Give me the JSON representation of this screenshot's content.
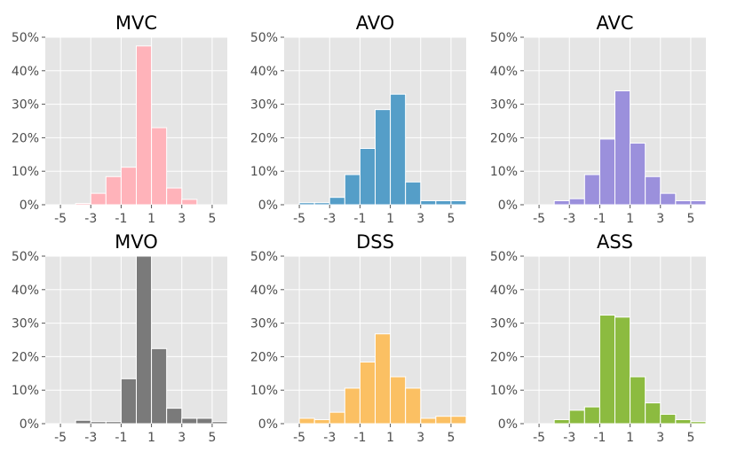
{
  "chart_data": [
    {
      "type": "bar",
      "title": "MVC",
      "color": "#ffb3ba",
      "ylim": [
        0,
        50
      ],
      "yticks": [
        "0%",
        "10%",
        "20%",
        "30%",
        "40%",
        "50%"
      ],
      "xticks": [
        "-5",
        "-3",
        "-1",
        "1",
        "3",
        "5"
      ],
      "bin_starts": [
        -5,
        -4,
        -3,
        -2,
        -1,
        0,
        1,
        2,
        3,
        4,
        5
      ],
      "values": [
        0.0,
        0.4,
        3.4,
        8.4,
        11.2,
        47.4,
        23.0,
        5.0,
        1.6,
        0.0,
        0.0
      ]
    },
    {
      "type": "bar",
      "title": "AVO",
      "color": "#559ec8",
      "ylim": [
        0,
        50
      ],
      "yticks": [
        "0%",
        "10%",
        "20%",
        "30%",
        "40%",
        "50%"
      ],
      "xticks": [
        "-5",
        "-3",
        "-1",
        "1",
        "3",
        "5"
      ],
      "bin_starts": [
        -5,
        -4,
        -3,
        -2,
        -1,
        0,
        1,
        2,
        3,
        4,
        5
      ],
      "values": [
        0.6,
        0.6,
        2.2,
        9.0,
        16.8,
        28.4,
        33.0,
        6.8,
        1.2,
        1.2,
        1.2
      ]
    },
    {
      "type": "bar",
      "title": "AVC",
      "color": "#9b90dc",
      "ylim": [
        0,
        50
      ],
      "yticks": [
        "0%",
        "10%",
        "20%",
        "30%",
        "40%",
        "50%"
      ],
      "xticks": [
        "-5",
        "-3",
        "-1",
        "1",
        "3",
        "5"
      ],
      "bin_starts": [
        -5,
        -4,
        -3,
        -2,
        -1,
        0,
        1,
        2,
        3,
        4,
        5
      ],
      "values": [
        0.0,
        1.2,
        1.8,
        9.0,
        19.6,
        34.0,
        18.4,
        8.4,
        3.4,
        1.2,
        1.2
      ]
    },
    {
      "type": "bar",
      "title": "MVO",
      "color": "#7a7a7a",
      "ylim": [
        0,
        50
      ],
      "yticks": [
        "0%",
        "10%",
        "20%",
        "30%",
        "40%",
        "50%"
      ],
      "xticks": [
        "-5",
        "-3",
        "-1",
        "1",
        "3",
        "5"
      ],
      "bin_starts": [
        -5,
        -4,
        -3,
        -2,
        -1,
        0,
        1,
        2,
        3,
        4,
        5
      ],
      "values": [
        0.0,
        1.0,
        0.6,
        0.6,
        13.4,
        50.0,
        22.4,
        4.6,
        1.6,
        1.6,
        0.6
      ]
    },
    {
      "type": "bar",
      "title": "DSS",
      "color": "#fbc063",
      "ylim": [
        0,
        50
      ],
      "yticks": [
        "0%",
        "10%",
        "20%",
        "30%",
        "40%",
        "50%"
      ],
      "xticks": [
        "-5",
        "-3",
        "-1",
        "1",
        "3",
        "5"
      ],
      "bin_starts": [
        -5,
        -4,
        -3,
        -2,
        -1,
        0,
        1,
        2,
        3,
        4,
        5
      ],
      "values": [
        1.6,
        1.2,
        3.4,
        10.6,
        18.4,
        26.8,
        14.0,
        10.6,
        1.6,
        2.2,
        2.2
      ]
    },
    {
      "type": "bar",
      "title": "ASS",
      "color": "#8cbb40",
      "ylim": [
        0,
        50
      ],
      "yticks": [
        "0%",
        "10%",
        "20%",
        "30%",
        "40%",
        "50%"
      ],
      "xticks": [
        "-5",
        "-3",
        "-1",
        "1",
        "3",
        "5"
      ],
      "bin_starts": [
        -5,
        -4,
        -3,
        -2,
        -1,
        0,
        1,
        2,
        3,
        4,
        5
      ],
      "values": [
        0.0,
        1.2,
        4.0,
        5.0,
        32.4,
        31.8,
        14.0,
        6.2,
        2.8,
        1.2,
        0.6
      ]
    }
  ]
}
